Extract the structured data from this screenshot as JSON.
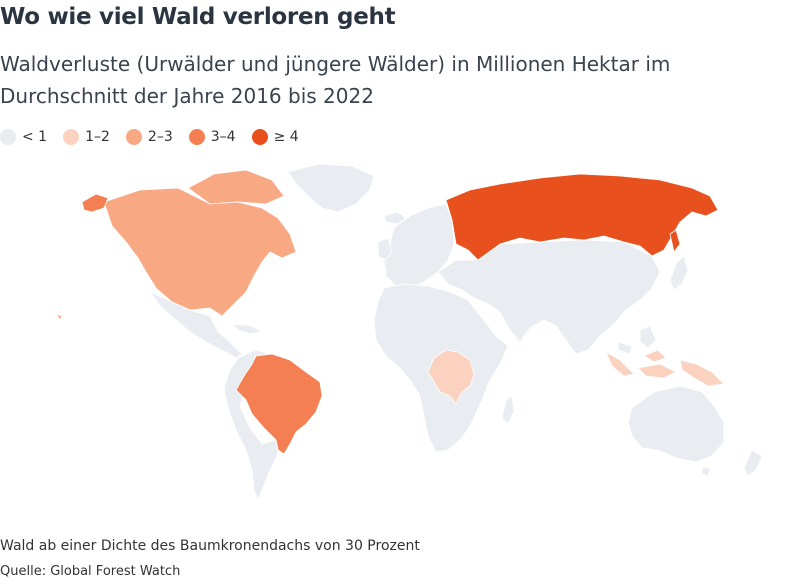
{
  "header": {
    "title": "Wo wie viel Wald verloren geht",
    "subtitle": "Waldverluste (Urwälder und jüngere Wälder) in Millionen Hektar im Durchschnitt der Jahre 2016 bis 2022"
  },
  "legend": [
    {
      "label": "< 1",
      "color": "#e9edf1"
    },
    {
      "label": "1–2",
      "color": "#fbd2c0"
    },
    {
      "label": "2–3",
      "color": "#f8a984"
    },
    {
      "label": "3–4",
      "color": "#f37f52"
    },
    {
      "label": "≥ 4",
      "color": "#e8501e"
    }
  ],
  "map": {
    "regions": [
      {
        "id": "north-america",
        "class": "2–3"
      },
      {
        "id": "alaska",
        "class": "3–4"
      },
      {
        "id": "brazil",
        "class": "3–4"
      },
      {
        "id": "russia",
        "class": "≥ 4"
      },
      {
        "id": "dr-congo",
        "class": "1–2"
      },
      {
        "id": "indonesia",
        "class": "1–2"
      },
      {
        "id": "rest-of-world",
        "class": "< 1"
      }
    ]
  },
  "footer": {
    "note": "Wald ab einer Dichte des Baumkronendachs von 30 Prozent",
    "source": "Quelle: Global Forest Watch"
  }
}
